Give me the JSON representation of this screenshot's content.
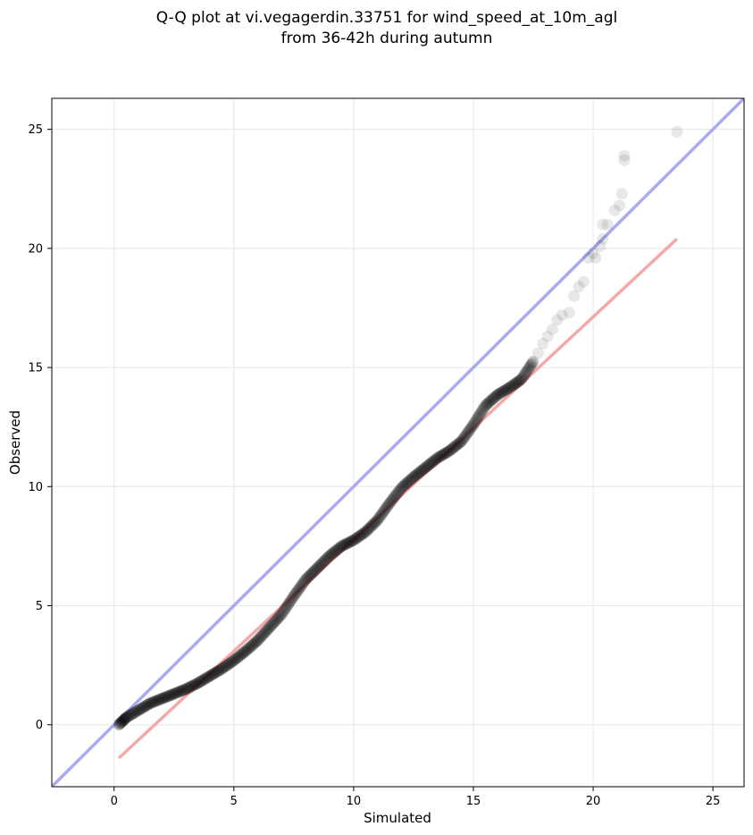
{
  "chart_data": {
    "type": "scatter",
    "title_lines": [
      "Q-Q plot at vi.vegagerdin.33751 for wind_speed_at_10m_agl",
      "from 36-42h during autumn"
    ],
    "xlabel": "Simulated",
    "ylabel": "Observed",
    "xlim": [
      -2.6,
      26.3
    ],
    "ylim": [
      -2.6,
      26.3
    ],
    "xticks": [
      0,
      5,
      10,
      15,
      20,
      25
    ],
    "yticks": [
      0,
      5,
      10,
      15,
      20,
      25
    ],
    "grid": true,
    "point_color": "#000000",
    "reference_line": {
      "kind": "identity",
      "color": "#aaaaf2"
    },
    "fit_line": {
      "color": "#f4a8a8",
      "x": [
        0.2,
        23.5
      ],
      "y": [
        -1.4,
        20.4
      ]
    },
    "quantile_curve": {
      "x": [
        0.2,
        0.5,
        1.0,
        1.5,
        2.0,
        2.5,
        3.0,
        3.5,
        4.0,
        4.5,
        5.0,
        5.5,
        6.0,
        6.5,
        7.0,
        7.5,
        8.0,
        8.5,
        9.0,
        9.5,
        10.0,
        10.5,
        11.0,
        11.5,
        12.0,
        12.5,
        13.0,
        13.5,
        14.0,
        14.5,
        15.0,
        15.5,
        16.0,
        16.5,
        17.0,
        17.5
      ],
      "y": [
        0.0,
        0.3,
        0.6,
        0.9,
        1.1,
        1.3,
        1.5,
        1.75,
        2.05,
        2.35,
        2.7,
        3.1,
        3.55,
        4.1,
        4.65,
        5.4,
        6.1,
        6.6,
        7.1,
        7.5,
        7.75,
        8.1,
        8.6,
        9.3,
        9.95,
        10.4,
        10.8,
        11.2,
        11.5,
        11.9,
        12.6,
        13.4,
        13.85,
        14.15,
        14.5,
        15.25
      ]
    },
    "tail_points": [
      {
        "x": 17.7,
        "y": 15.6
      },
      {
        "x": 17.9,
        "y": 16.0
      },
      {
        "x": 18.1,
        "y": 16.3
      },
      {
        "x": 18.3,
        "y": 16.6
      },
      {
        "x": 18.5,
        "y": 17.0
      },
      {
        "x": 18.7,
        "y": 17.2
      },
      {
        "x": 19.0,
        "y": 17.3
      },
      {
        "x": 19.2,
        "y": 18.0
      },
      {
        "x": 19.4,
        "y": 18.4
      },
      {
        "x": 19.6,
        "y": 18.6
      },
      {
        "x": 19.8,
        "y": 19.6
      },
      {
        "x": 20.0,
        "y": 19.8
      },
      {
        "x": 20.1,
        "y": 19.6
      },
      {
        "x": 20.3,
        "y": 20.1
      },
      {
        "x": 20.4,
        "y": 20.4
      },
      {
        "x": 20.4,
        "y": 21.0
      },
      {
        "x": 20.6,
        "y": 21.0
      },
      {
        "x": 20.9,
        "y": 21.6
      },
      {
        "x": 21.1,
        "y": 21.8
      },
      {
        "x": 21.2,
        "y": 22.3
      },
      {
        "x": 21.3,
        "y": 23.7
      },
      {
        "x": 21.3,
        "y": 23.9
      },
      {
        "x": 23.5,
        "y": 24.9
      }
    ]
  }
}
